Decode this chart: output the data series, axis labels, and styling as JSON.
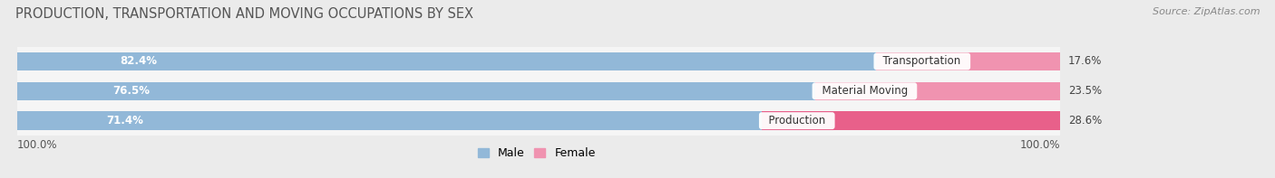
{
  "title": "PRODUCTION, TRANSPORTATION AND MOVING OCCUPATIONS BY SEX",
  "source": "Source: ZipAtlas.com",
  "categories": [
    "Transportation",
    "Material Moving",
    "Production"
  ],
  "male_pct": [
    82.4,
    76.5,
    71.4
  ],
  "female_pct": [
    17.6,
    23.5,
    28.6
  ],
  "male_color": "#92b8d8",
  "female_color": "#f093b0",
  "production_female_color": "#e8608a",
  "male_label": "Male",
  "female_label": "Female",
  "bg_color": "#ebebeb",
  "row_bg_color": "#f5f5f5",
  "title_fontsize": 10.5,
  "source_fontsize": 8,
  "bar_label_fontsize": 8.5,
  "cat_label_fontsize": 8.5,
  "legend_fontsize": 9,
  "x_left_label": "100.0%",
  "x_right_label": "100.0%",
  "row_separator_color": "#d8d8d8"
}
